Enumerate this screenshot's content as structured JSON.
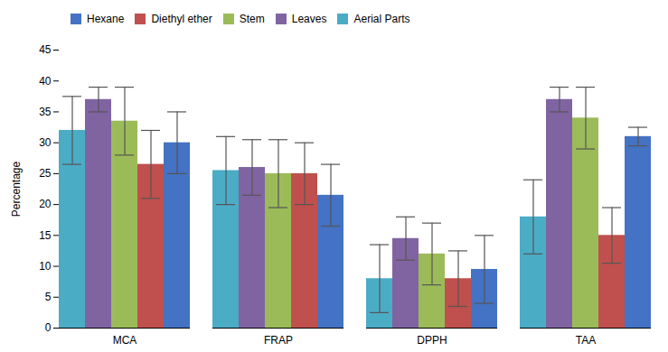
{
  "chart_data": {
    "type": "bar",
    "categories": [
      "MCA",
      "FRAP",
      "DPPH",
      "TAA"
    ],
    "ylabel": "Percentage",
    "ylim": [
      0,
      45
    ],
    "yticks": [
      0,
      5,
      10,
      15,
      20,
      25,
      30,
      35,
      40,
      45
    ],
    "grid": false,
    "legend": "upper left",
    "series": [
      {
        "name": "Hexane",
        "color": "#4472C4",
        "values": [
          30.0,
          21.5,
          9.5,
          31.0
        ],
        "errors": [
          5.0,
          5.0,
          5.5,
          1.5
        ]
      },
      {
        "name": "Diethyl ether",
        "color": "#C0504D",
        "values": [
          26.5,
          25.0,
          8.0,
          15.0
        ],
        "errors": [
          5.5,
          5.0,
          4.5,
          4.5
        ]
      },
      {
        "name": "Stem",
        "color": "#9BBB59",
        "values": [
          33.5,
          25.0,
          12.0,
          34.0
        ],
        "errors": [
          5.5,
          5.5,
          5.0,
          5.0
        ]
      },
      {
        "name": "Leaves",
        "color": "#8064A2",
        "values": [
          37.0,
          26.0,
          14.5,
          37.0
        ],
        "errors": [
          2.0,
          4.5,
          3.5,
          2.0
        ]
      },
      {
        "name": "Aerial Parts",
        "color": "#4BACC6",
        "values": [
          32.0,
          25.5,
          8.0,
          18.0
        ],
        "errors": [
          5.5,
          5.5,
          5.5,
          6.0
        ]
      }
    ]
  }
}
